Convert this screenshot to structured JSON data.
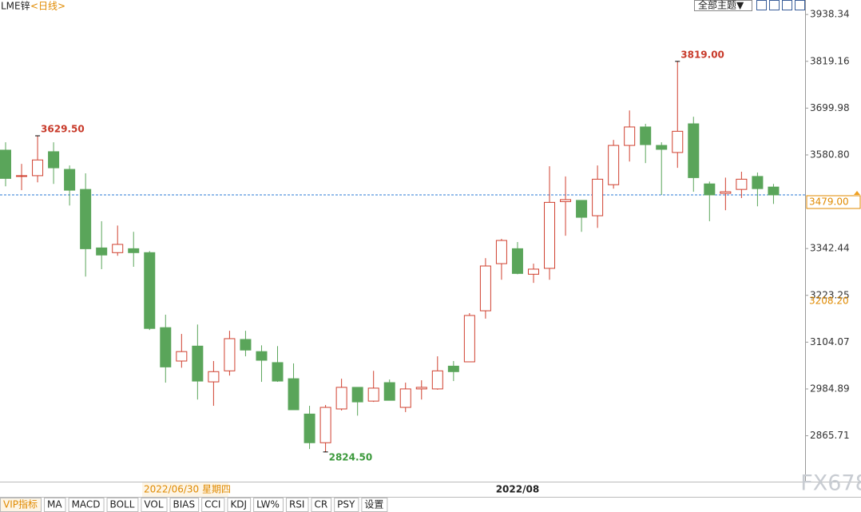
{
  "chart_data": {
    "type": "candlestick",
    "title": "LME锌",
    "subtitle": "<日线>",
    "theme_button": "全部主题▼",
    "categories": [
      null,
      null,
      null,
      null,
      null,
      null,
      null,
      null,
      null,
      null,
      null,
      null,
      null,
      null,
      null,
      null,
      null,
      null,
      null,
      null,
      null,
      null,
      null,
      null,
      null,
      null,
      null,
      null,
      null,
      null,
      null,
      null,
      "2022/08",
      null,
      null,
      null,
      null,
      null,
      null,
      null,
      null,
      null,
      null,
      null,
      null,
      null,
      null,
      null,
      null
    ],
    "open": [
      3593,
      3526,
      3528,
      3589,
      3544,
      3493,
      3344,
      3332,
      3342,
      3332,
      3141,
      3056,
      3094,
      3003,
      3031,
      3111,
      3080,
      3052,
      3011,
      2921,
      2848,
      2934,
      2989,
      2954,
      3001,
      2938,
      2985,
      2985,
      3043,
      3054,
      3184,
      3304,
      3342,
      3277,
      3292,
      3462,
      3465,
      3426,
      3505,
      3605,
      3652,
      3605,
      3587,
      3660,
      3507,
      3483,
      3493,
      3526,
      3499
    ],
    "high": [
      3613,
      3558,
      3629.5,
      3613,
      3554,
      3534,
      3412,
      3401,
      3385,
      3336,
      3174,
      3125,
      3149,
      3056,
      3133,
      3133,
      3096,
      3094,
      3050,
      2942,
      2944,
      3011,
      2989,
      3031,
      3009,
      3001,
      3007,
      3068,
      3056,
      3178,
      3318,
      3367,
      3359,
      3304,
      3552,
      3526,
      3465,
      3554,
      3619,
      3694,
      3660,
      3613,
      3819,
      3678,
      3513,
      3523,
      3538,
      3536,
      3507
    ],
    "low": [
      3501,
      3491,
      3511,
      3507,
      3452,
      3271,
      3290,
      3324,
      3296,
      3135,
      3001,
      3039,
      2958,
      2942,
      3019,
      3068,
      3003,
      3003,
      2932,
      2832,
      2824.5,
      2930,
      2917,
      2952,
      2956,
      2926,
      2958,
      2983,
      3005,
      3054,
      3164,
      3263,
      3277,
      3255,
      3263,
      3375,
      3385,
      3395,
      3495,
      3564,
      3560,
      3479,
      3548,
      3487,
      3412,
      3440,
      3471,
      3450,
      3456
    ],
    "close": [
      3521,
      3528,
      3568,
      3548,
      3491,
      3342,
      3326,
      3353,
      3332,
      3139,
      3041,
      3080,
      3005,
      3029,
      3113,
      3084,
      3058,
      3005,
      2932,
      2848,
      2938,
      2989,
      2952,
      2987,
      2956,
      2985,
      2989,
      3031,
      3029,
      3172,
      3298,
      3363,
      3279,
      3290,
      3460,
      3467,
      3422,
      3519,
      3605,
      3652,
      3607,
      3595,
      3641,
      3523,
      3479,
      3487,
      3519,
      3495,
      3479
    ],
    "up_color": "#d0402f",
    "down_color": "#5aa55a",
    "ylim": [
      2755,
      3959
    ],
    "yticks": [
      3938.34,
      3819.16,
      3699.98,
      {
        "value": 3580.8,
        "label": "3580.80"
      },
      3342.44,
      3223.25,
      3104.07,
      2984.89,
      2865.71
    ],
    "extreme_labels": [
      {
        "value": 3629.5,
        "label": "3629.50"
      },
      {
        "value": 3819,
        "label": "3819.00"
      },
      {
        "value": 2824.5,
        "label": "2824.50"
      }
    ],
    "last_price": {
      "value": 3479,
      "label": "3479.00"
    },
    "marker_price": {
      "value": 3208.2,
      "label": "3208.20"
    },
    "cursor_label": "2022/06/30 星期四",
    "watermark": "FX678"
  },
  "tabs": [
    "VIP指标",
    "MA",
    "MACD",
    "BOLL",
    "VOL",
    "BIAS",
    "CCI",
    "KDJ",
    "LW%",
    "RSI",
    "CR",
    "PSY",
    "设置"
  ]
}
